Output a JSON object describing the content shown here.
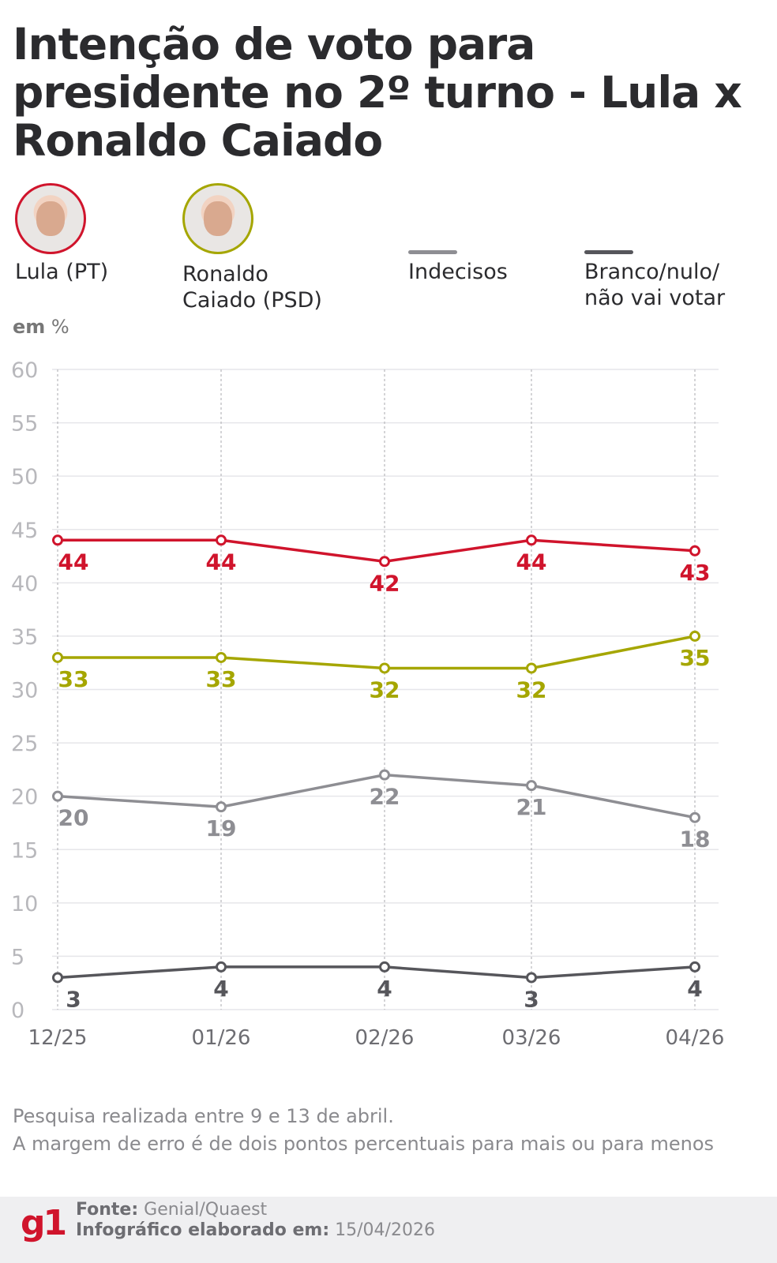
{
  "title": "Intenção de voto para presidente no 2º turno - Lula x Ronaldo Caiado",
  "legend": [
    {
      "label": "Lula (PT)",
      "color": "#d0142c",
      "type": "photo"
    },
    {
      "label": "Ronaldo Caiado (PSD)",
      "color": "#a5a600",
      "type": "photo"
    },
    {
      "label": "Indecisos",
      "color": "#8e8e93",
      "type": "line"
    },
    {
      "label": "Branco/nulo/ não vai votar",
      "color": "#56565b",
      "type": "line"
    }
  ],
  "unit_label": {
    "bold": "em",
    "rest": " %"
  },
  "chart_data": {
    "type": "line",
    "categories": [
      "12/25",
      "01/26",
      "02/26",
      "03/26",
      "04/26"
    ],
    "ylim": [
      0,
      60
    ],
    "yticks": [
      0,
      5,
      10,
      15,
      20,
      25,
      30,
      35,
      40,
      45,
      50,
      55,
      60
    ],
    "grid": true,
    "legend_placement": "top",
    "series": [
      {
        "name": "Lula (PT)",
        "color": "#d0142c",
        "values": [
          44,
          44,
          42,
          44,
          43
        ]
      },
      {
        "name": "Ronaldo Caiado (PSD)",
        "color": "#a5a600",
        "values": [
          33,
          33,
          32,
          32,
          35
        ]
      },
      {
        "name": "Indecisos",
        "color": "#8e8e93",
        "values": [
          20,
          19,
          22,
          21,
          18
        ]
      },
      {
        "name": "Branco/nulo/não vai votar",
        "color": "#56565b",
        "values": [
          3,
          4,
          4,
          3,
          4
        ]
      }
    ]
  },
  "notes": [
    "Pesquisa realizada entre 9 e 13 de abril.",
    "A margem de erro é de dois pontos percentuais para mais ou para menos"
  ],
  "footer": {
    "logo": "g1",
    "source_label": "Fonte:",
    "source": " Genial/Quaest",
    "made_label": "Infográfico elaborado em:",
    "made_date": " 15/04/2026"
  }
}
